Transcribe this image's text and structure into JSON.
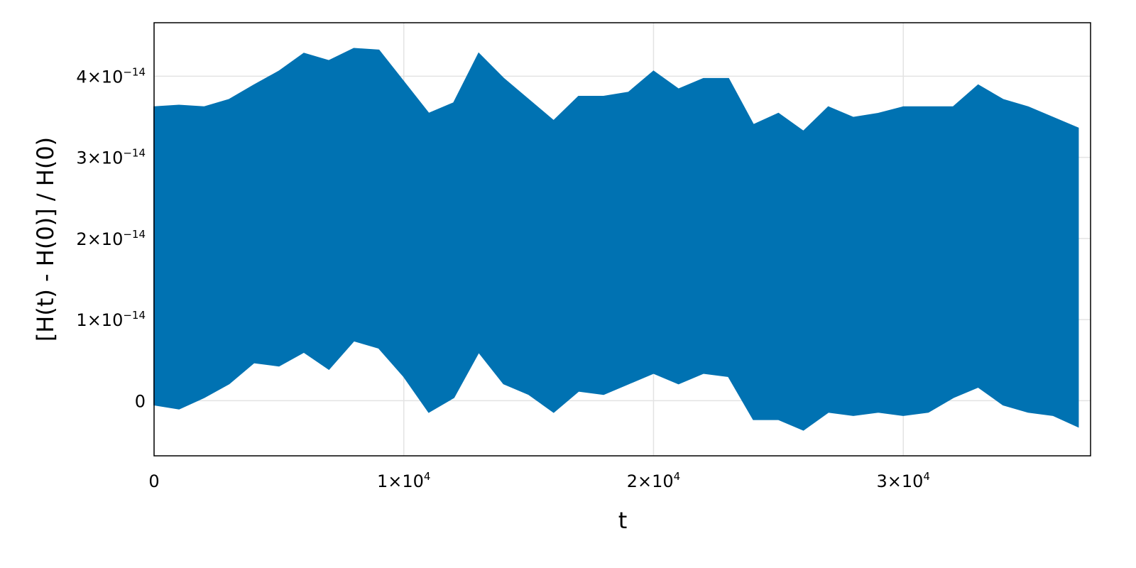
{
  "chart_data": {
    "type": "band",
    "xlabel": "t",
    "ylabel": "[H(t) - H(0)] / H(0)",
    "color": "#0072b2",
    "grid": true,
    "x": [
      0,
      1000,
      2000,
      3000,
      4000,
      5000,
      6000,
      7000,
      8000,
      9000,
      10000,
      11000,
      12000,
      13000,
      14000,
      15000,
      16000,
      17000,
      18000,
      19000,
      20000,
      21000,
      22000,
      23000,
      24000,
      25000,
      26000,
      27000,
      28000,
      29000,
      30000,
      31000,
      32000,
      33000,
      34000,
      35000,
      36000,
      37000
    ],
    "upper": [
      3.62e-14,
      3.64e-14,
      3.62e-14,
      3.71e-14,
      3.89e-14,
      4.06e-14,
      4.28e-14,
      4.19e-14,
      4.34e-14,
      4.32e-14,
      3.93e-14,
      3.54e-14,
      3.67e-14,
      4.28e-14,
      3.97e-14,
      3.71e-14,
      3.45e-14,
      3.75e-14,
      3.75e-14,
      3.8e-14,
      4.06e-14,
      3.84e-14,
      3.97e-14,
      3.97e-14,
      3.4e-14,
      3.54e-14,
      3.32e-14,
      3.62e-14,
      3.49e-14,
      3.54e-14,
      3.62e-14,
      3.62e-14,
      3.62e-14,
      3.89e-14,
      3.71e-14,
      3.62e-14,
      3.49e-14,
      3.36e-14
    ],
    "lower": [
      -5e-16,
      -1e-15,
      4e-16,
      2.1e-15,
      4.7e-15,
      4.3e-15,
      6e-15,
      3.9e-15,
      7.4e-15,
      6.5e-15,
      3e-15,
      -1.4e-15,
      4e-16,
      6e-15,
      2.1e-15,
      8e-16,
      -1.4e-15,
      1.2e-15,
      8e-16,
      2.1e-15,
      3.4e-15,
      2.1e-15,
      3.4e-15,
      3e-15,
      -2.3e-15,
      -2.3e-15,
      -3.6e-15,
      -1.4e-15,
      -1.8e-15,
      -1.4e-15,
      -1.8e-15,
      -1.4e-15,
      4e-16,
      1.7e-15,
      -5e-16,
      -1.4e-15,
      -1.8e-15,
      -3.2e-15
    ],
    "xlim": [
      0,
      37500
    ],
    "ylim": [
      -6.8e-15,
      4.66e-14
    ],
    "xticks": [
      0,
      {
        "value": 10000,
        "label": "1×10",
        "exponent": "4"
      },
      {
        "value": 20000,
        "label": "2×10",
        "exponent": "4"
      },
      {
        "value": 30000,
        "label": "3×10",
        "exponent": "4"
      }
    ],
    "yticks": [
      0,
      {
        "value": 1e-14,
        "label": "1×10",
        "exponent": "−14"
      },
      {
        "value": 2e-14,
        "label": "2×10",
        "exponent": "−14"
      },
      {
        "value": 3e-14,
        "label": "3×10",
        "exponent": "−14"
      },
      {
        "value": 4e-14,
        "label": "4×10",
        "exponent": "−14"
      }
    ]
  }
}
